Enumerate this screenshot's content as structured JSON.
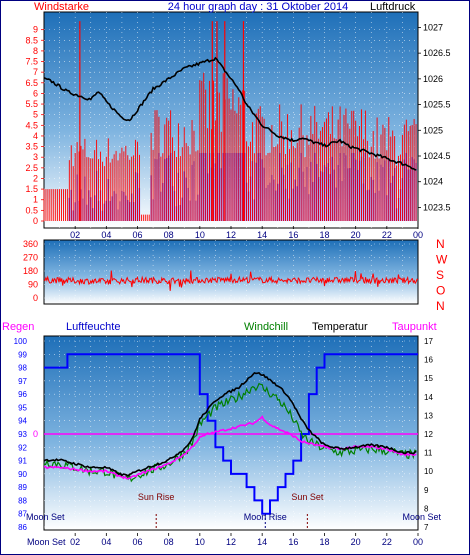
{
  "title": "24 hour graph day : 31 Oktober 2014",
  "colors": {
    "wind_speed": "#ff0000",
    "gust_blue": "#0000ff",
    "pressure": "#000000",
    "wind_dir": "#ff0000",
    "humidity": "#0000ff",
    "windchill": "#008000",
    "temperature": "#000000",
    "dewpoint": "#ff00ff",
    "rain": "#ff00ff",
    "moon": "#000080",
    "sun": "#800000"
  },
  "chart_data": [
    {
      "type": "line",
      "panel": "wind-and-pressure",
      "title": "24 hour graph day : 31 Oktober 2014",
      "left_label": "Windstarke",
      "right_label": "Luftdruck",
      "x_ticks": [
        "02",
        "04",
        "06",
        "08",
        "10",
        "12",
        "14",
        "16",
        "18",
        "20",
        "22",
        "00"
      ],
      "y_left_ticks": [
        "0",
        "0.5",
        "1",
        "1.5",
        "2",
        "2.5",
        "3",
        "3.5",
        "4",
        "4.5",
        "5",
        "5.5",
        "6",
        "6.5",
        "7",
        "7.5",
        "8",
        "8.5",
        "9"
      ],
      "y_right_ticks": [
        "1023.5",
        "1024",
        "1024.5",
        "1025",
        "1025.5",
        "1026",
        "1026.5",
        "1027"
      ],
      "ylim_left": [
        0,
        9.5
      ],
      "ylim_right": [
        1023.1,
        1027.3
      ],
      "series": [
        {
          "name": "Luftdruck",
          "x": [
            0,
            0.5,
            1,
            1.5,
            2,
            2.5,
            3,
            3.5,
            4,
            4.5,
            5,
            5.5,
            6,
            6.5,
            7,
            7.5,
            8,
            8.5,
            9,
            9.5,
            10,
            10.5,
            11,
            11.5,
            12,
            12.5,
            13,
            13.5,
            14,
            14.5,
            15,
            15.5,
            16,
            16.5,
            17,
            17.5,
            18,
            18.5,
            19,
            19.5,
            20,
            20.5,
            21,
            21.5,
            22,
            22.5,
            23,
            23.5,
            24
          ],
          "values": [
            1026.0,
            1025.95,
            1025.85,
            1025.75,
            1025.7,
            1025.65,
            1025.6,
            1025.75,
            1025.55,
            1025.4,
            1025.25,
            1025.2,
            1025.4,
            1025.6,
            1025.8,
            1025.9,
            1026.0,
            1026.1,
            1026.2,
            1026.25,
            1026.3,
            1026.35,
            1026.4,
            1026.2,
            1026.0,
            1025.8,
            1025.5,
            1025.3,
            1025.1,
            1025.0,
            1024.9,
            1024.85,
            1024.8,
            1024.85,
            1024.8,
            1024.75,
            1024.7,
            1024.75,
            1024.8,
            1024.7,
            1024.65,
            1024.6,
            1024.55,
            1024.5,
            1024.45,
            1024.4,
            1024.35,
            1024.3,
            1024.2
          ]
        }
      ]
    },
    {
      "type": "line",
      "panel": "wind-direction",
      "right_label": "N W S O N",
      "y_ticks": [
        "0",
        "90",
        "180",
        "270",
        "360"
      ],
      "ylim": [
        0,
        360
      ],
      "series": [
        {
          "name": "wind direction",
          "x": [
            0,
            2,
            4,
            6,
            8,
            10,
            12,
            14,
            16,
            18,
            20,
            22,
            24
          ],
          "values": [
            120,
            115,
            110,
            120,
            115,
            118,
            122,
            120,
            116,
            118,
            120,
            115,
            118
          ]
        }
      ]
    },
    {
      "type": "line",
      "panel": "humidity-temperature",
      "left_label": "Regen",
      "labels": {
        "humidity": "Luftfeuchte",
        "windchill": "Windchill",
        "temperature": "Temperatur",
        "dewpoint": "Taupunkt"
      },
      "rain_value": "0",
      "y_left_ticks": [
        "86",
        "87",
        "88",
        "89",
        "90",
        "91",
        "92",
        "93",
        "94",
        "95",
        "96",
        "97",
        "98",
        "99",
        "100"
      ],
      "y_right_ticks": [
        "7",
        "8",
        "9",
        "10",
        "11",
        "12",
        "13",
        "14",
        "15",
        "16",
        "17"
      ],
      "ylim_left": [
        86,
        100
      ],
      "ylim_right": [
        7,
        17
      ],
      "x_ticks": [
        "02",
        "04",
        "06",
        "08",
        "10",
        "12",
        "14",
        "16",
        "18",
        "20",
        "22",
        "00"
      ],
      "series": [
        {
          "name": "Luftfeuchte",
          "x": [
            0,
            1.4,
            1.5,
            2.5,
            9.9,
            10.0,
            10.5,
            11,
            11.5,
            12,
            12.5,
            13,
            13.5,
            14,
            14.5,
            15,
            15.5,
            16,
            16.5,
            17,
            17.5,
            18,
            18.5,
            24
          ],
          "values": [
            98,
            98,
            99,
            99,
            99,
            96,
            94,
            92,
            91,
            90,
            90,
            89,
            88,
            87,
            88,
            89,
            90,
            91,
            93,
            96,
            98,
            99,
            99,
            99
          ]
        },
        {
          "name": "Temperatur",
          "x": [
            0,
            1,
            2,
            3,
            4,
            5,
            5.5,
            6,
            7,
            8,
            9,
            9.5,
            10,
            10.5,
            11,
            11.5,
            12,
            12.5,
            13,
            13.5,
            14,
            14.5,
            15,
            15.5,
            16,
            16.5,
            17,
            18,
            19,
            20,
            21,
            22,
            23,
            24
          ],
          "values": [
            10.6,
            10.6,
            10.4,
            10.2,
            10.2,
            9.8,
            9.8,
            10.0,
            10.3,
            10.6,
            11.2,
            11.7,
            12.8,
            13.3,
            13.8,
            14.1,
            14.3,
            14.5,
            14.9,
            15.3,
            15.2,
            14.9,
            14.6,
            14.2,
            13.6,
            12.8,
            12.2,
            11.4,
            11.2,
            11.3,
            11.4,
            11.3,
            11.0,
            11.0
          ]
        },
        {
          "name": "Windchill",
          "x": [
            0,
            1,
            2,
            3,
            4,
            5,
            5.5,
            6,
            7,
            8,
            9,
            9.5,
            10,
            10.5,
            11,
            11.5,
            12,
            12.5,
            13,
            13.5,
            14,
            14.5,
            15,
            15.5,
            16,
            16.5,
            17,
            18,
            19,
            20,
            21,
            22,
            23,
            24
          ],
          "values": [
            10.5,
            10.4,
            10.2,
            10.0,
            10.0,
            9.6,
            9.6,
            9.8,
            10.1,
            10.4,
            11.0,
            11.5,
            12.5,
            13.0,
            13.4,
            13.6,
            13.8,
            14.0,
            14.3,
            14.6,
            14.5,
            14.2,
            13.9,
            13.4,
            12.8,
            12.0,
            11.6,
            11.2,
            11.0,
            11.1,
            11.2,
            11.1,
            10.9,
            10.9
          ]
        },
        {
          "name": "Taupunkt",
          "x": [
            0,
            1,
            2,
            3,
            4,
            5,
            5.5,
            6,
            7,
            8,
            9,
            9.5,
            10,
            10.5,
            11,
            11.5,
            12,
            12.5,
            13,
            13.5,
            14,
            14.5,
            15,
            15.5,
            16,
            16.5,
            17,
            18,
            19,
            20,
            21,
            22,
            23,
            24
          ],
          "values": [
            10.2,
            10.2,
            10.1,
            10.0,
            10.0,
            9.7,
            9.6,
            9.8,
            10.1,
            10.4,
            10.9,
            11.3,
            11.8,
            12.0,
            12.1,
            12.2,
            12.3,
            12.4,
            12.5,
            12.6,
            12.9,
            12.5,
            12.3,
            12.1,
            11.9,
            11.6,
            11.5,
            11.3,
            11.2,
            11.3,
            11.3,
            11.2,
            10.9,
            10.9
          ]
        }
      ],
      "events": [
        {
          "label": "Moon Set",
          "x": 0
        },
        {
          "label": "Sun Rise",
          "x": 7.2
        },
        {
          "label": "Moon Rise",
          "x": 14.2
        },
        {
          "label": "Sun Set",
          "x": 16.9
        },
        {
          "label": "Moon Set",
          "x": 24
        }
      ],
      "footer_label": "Moon Set"
    }
  ]
}
